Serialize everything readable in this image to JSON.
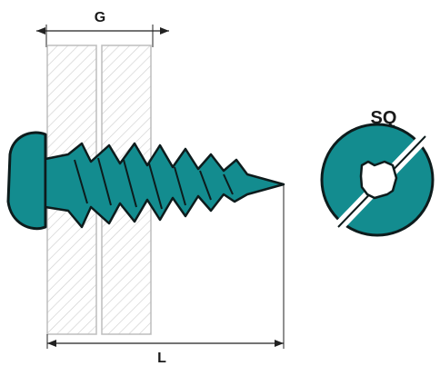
{
  "labels": {
    "grip": "G",
    "length": "L",
    "drive": "SQ"
  },
  "colors": {
    "screw_fill": "#138c8f",
    "screw_stroke": "#0d1b1c",
    "material_hatch": "#c9c9c9",
    "dimension_line": "#222222"
  }
}
